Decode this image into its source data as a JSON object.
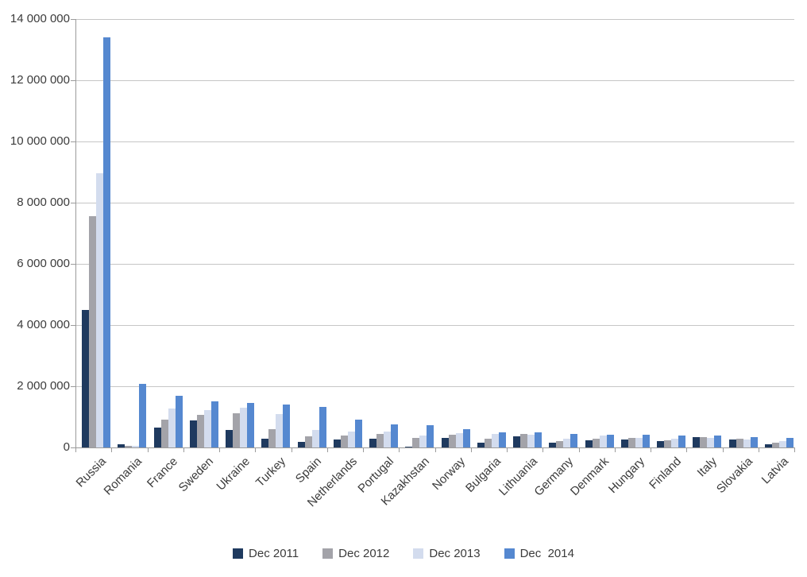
{
  "chart_data": {
    "type": "bar",
    "title": "",
    "xlabel": "",
    "ylabel": "",
    "grid": true,
    "legend_position": "bottom",
    "ylim": [
      0,
      14000000
    ],
    "ytick_step": 2000000,
    "ytick_labels": [
      "0",
      "2 000 000",
      "4 000 000",
      "6 000 000",
      "8 000 000",
      "10 000 000",
      "12 000 000",
      "14 000 000"
    ],
    "categories": [
      "Russia",
      "Romania",
      "France",
      "Sweden",
      "Ukraine",
      "Turkey",
      "Spain",
      "Netherlands",
      "Portugal",
      "Kazakhstan",
      "Norway",
      "Bulgaria",
      "Lithuania",
      "Germany",
      "Denmark",
      "Hungary",
      "Finland",
      "Italy",
      "Slovakia",
      "Latvia"
    ],
    "series": [
      {
        "name": "Dec 2011",
        "color": "#1f3a5f",
        "values": [
          4500000,
          100000,
          650000,
          880000,
          570000,
          280000,
          180000,
          260000,
          290000,
          20000,
          310000,
          160000,
          360000,
          160000,
          230000,
          260000,
          200000,
          340000,
          260000,
          110000
        ]
      },
      {
        "name": "Dec 2012",
        "color": "#a3a3a9",
        "values": [
          7550000,
          50000,
          900000,
          1060000,
          1120000,
          590000,
          360000,
          380000,
          440000,
          300000,
          410000,
          290000,
          440000,
          210000,
          280000,
          310000,
          230000,
          330000,
          280000,
          150000
        ]
      },
      {
        "name": "Dec 2013",
        "color": "#d3dcee",
        "values": [
          8950000,
          50000,
          1270000,
          1220000,
          1300000,
          1080000,
          560000,
          510000,
          520000,
          390000,
          470000,
          450000,
          420000,
          280000,
          380000,
          300000,
          280000,
          320000,
          270000,
          210000
        ]
      },
      {
        "name": "Dec  2014",
        "color": "#5588d0",
        "values": [
          13400000,
          2080000,
          1700000,
          1500000,
          1450000,
          1400000,
          1330000,
          900000,
          750000,
          740000,
          600000,
          500000,
          490000,
          440000,
          410000,
          410000,
          390000,
          390000,
          330000,
          310000
        ]
      }
    ],
    "colors": {
      "background": "#ffffff",
      "gridline": "#c6c6c6",
      "axis": "#9b9b9b",
      "text": "#3b3b3b"
    }
  }
}
